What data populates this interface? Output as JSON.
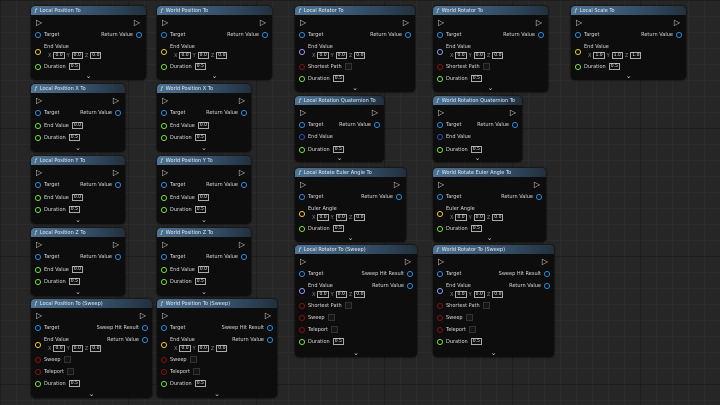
{
  "pin_colors": {
    "object": "#2d8de0",
    "vector": "#f0c82a",
    "rotator": "#8f9ff0",
    "bool": "#8a0f0f",
    "float": "#7ee23a",
    "quat": "#2d50b8"
  },
  "icons": {
    "function": "f-function-icon",
    "exec": "exec-arrow-icon",
    "expand": "chevron-down-icon"
  },
  "nodes": [
    {
      "title": "Local Position To",
      "rows": [
        [
          {
            "label": "Target",
            "pin": "object"
          },
          {
            "label": "Return Value",
            "pin": "object"
          }
        ],
        [
          {
            "label": "End Value",
            "pin": "vector",
            "xyz": [
              "0.0",
              "0.0",
              "0.0"
            ]
          }
        ],
        [
          {
            "label": "Duration",
            "pin": "float",
            "value": "0.5"
          }
        ]
      ]
    },
    {
      "title": "World Position To",
      "rows": [
        [
          {
            "label": "Target",
            "pin": "object"
          },
          {
            "label": "Return Value",
            "pin": "object"
          }
        ],
        [
          {
            "label": "End Value",
            "pin": "vector",
            "xyz": [
              "0.0",
              "0.0",
              "0.0"
            ]
          }
        ],
        [
          {
            "label": "Duration",
            "pin": "float",
            "value": "0.5"
          }
        ]
      ]
    },
    {
      "title": "Local Rotator To",
      "rows": [
        [
          {
            "label": "Target",
            "pin": "object"
          },
          {
            "label": "Return Value",
            "pin": "object"
          }
        ],
        [
          {
            "label": "End Value",
            "pin": "rotator",
            "xyz": [
              "0.0",
              "0.0",
              "0.0"
            ]
          }
        ],
        [
          {
            "label": "Shortest Path",
            "pin": "bool",
            "checked": false
          }
        ],
        [
          {
            "label": "Duration",
            "pin": "float",
            "value": "0.5"
          }
        ]
      ]
    },
    {
      "title": "World Rotator To",
      "rows": [
        [
          {
            "label": "Target",
            "pin": "object"
          },
          {
            "label": "Return Value",
            "pin": "object"
          }
        ],
        [
          {
            "label": "End Value",
            "pin": "rotator",
            "xyz": [
              "0.0",
              "0.0",
              "0.0"
            ]
          }
        ],
        [
          {
            "label": "Shortest Path",
            "pin": "bool",
            "checked": false
          }
        ],
        [
          {
            "label": "Duration",
            "pin": "float",
            "value": "0.5"
          }
        ]
      ]
    },
    {
      "title": "Local Scale To",
      "rows": [
        [
          {
            "label": "Target",
            "pin": "object"
          },
          {
            "label": "Return Value",
            "pin": "object"
          }
        ],
        [
          {
            "label": "End Value",
            "pin": "vector",
            "xyz": [
              "1.0",
              "1.0",
              "1.0"
            ]
          }
        ],
        [
          {
            "label": "Duration",
            "pin": "float",
            "value": "0.5"
          }
        ]
      ]
    },
    {
      "title": "Local Position X To",
      "rows": [
        [
          {
            "label": "Target",
            "pin": "object"
          },
          {
            "label": "Return Value",
            "pin": "object"
          }
        ],
        [
          {
            "label": "End Value",
            "pin": "float",
            "value": "0.0"
          }
        ],
        [
          {
            "label": "Duration",
            "pin": "float",
            "value": "0.5"
          }
        ]
      ]
    },
    {
      "title": "World Position X To",
      "rows": [
        [
          {
            "label": "Target",
            "pin": "object"
          },
          {
            "label": "Return Value",
            "pin": "object"
          }
        ],
        [
          {
            "label": "End Value",
            "pin": "float",
            "value": "0.0"
          }
        ],
        [
          {
            "label": "Duration",
            "pin": "float",
            "value": "0.5"
          }
        ]
      ]
    },
    {
      "title": "Local Rotation Quaternion To",
      "rows": [
        [
          {
            "label": "Target",
            "pin": "object"
          },
          {
            "label": "Return Value",
            "pin": "object"
          }
        ],
        [
          {
            "label": "End Value",
            "pin": "quat"
          }
        ],
        [
          {
            "label": "Duration",
            "pin": "float",
            "value": "0.5"
          }
        ]
      ]
    },
    {
      "title": "World Rotation Quaternion To",
      "rows": [
        [
          {
            "label": "Target",
            "pin": "object"
          },
          {
            "label": "Return Value",
            "pin": "object"
          }
        ],
        [
          {
            "label": "End Value",
            "pin": "quat"
          }
        ],
        [
          {
            "label": "Duration",
            "pin": "float",
            "value": "0.5"
          }
        ]
      ]
    },
    {
      "title": "Local Position Y To",
      "rows": [
        [
          {
            "label": "Target",
            "pin": "object"
          },
          {
            "label": "Return Value",
            "pin": "object"
          }
        ],
        [
          {
            "label": "End Value",
            "pin": "float",
            "value": "0.0"
          }
        ],
        [
          {
            "label": "Duration",
            "pin": "float",
            "value": "0.5"
          }
        ]
      ]
    },
    {
      "title": "World Position Y To",
      "rows": [
        [
          {
            "label": "Target",
            "pin": "object"
          },
          {
            "label": "Return Value",
            "pin": "object"
          }
        ],
        [
          {
            "label": "End Value",
            "pin": "float",
            "value": "0.0"
          }
        ],
        [
          {
            "label": "Duration",
            "pin": "float",
            "value": "0.5"
          }
        ]
      ]
    },
    {
      "title": "Local Rotate Euler Angle To",
      "rows": [
        [
          {
            "label": "Target",
            "pin": "object"
          },
          {
            "label": "Return Value",
            "pin": "object"
          }
        ],
        [
          {
            "label": "Euler Angle",
            "pin": "vector",
            "xyz": [
              "0.0",
              "0.0",
              "0.0"
            ]
          }
        ],
        [
          {
            "label": "Duration",
            "pin": "float",
            "value": "0.5"
          }
        ]
      ]
    },
    {
      "title": "World Rotate Euler Angle To",
      "rows": [
        [
          {
            "label": "Target",
            "pin": "object"
          },
          {
            "label": "Return Value",
            "pin": "object"
          }
        ],
        [
          {
            "label": "Euler Angle",
            "pin": "vector",
            "xyz": [
              "0.0",
              "0.0",
              "0.0"
            ]
          }
        ],
        [
          {
            "label": "Duration",
            "pin": "float",
            "value": "0.5"
          }
        ]
      ]
    },
    {
      "title": "Local Position Z To",
      "rows": [
        [
          {
            "label": "Target",
            "pin": "object"
          },
          {
            "label": "Return Value",
            "pin": "object"
          }
        ],
        [
          {
            "label": "End Value",
            "pin": "float",
            "value": "0.0"
          }
        ],
        [
          {
            "label": "Duration",
            "pin": "float",
            "value": "0.5"
          }
        ]
      ]
    },
    {
      "title": "World Position Z To",
      "rows": [
        [
          {
            "label": "Target",
            "pin": "object"
          },
          {
            "label": "Return Value",
            "pin": "object"
          }
        ],
        [
          {
            "label": "End Value",
            "pin": "float",
            "value": "0.0"
          }
        ],
        [
          {
            "label": "Duration",
            "pin": "float",
            "value": "0.5"
          }
        ]
      ]
    },
    {
      "title": "Local Rotator To (Sweep)",
      "rows": [
        [
          {
            "label": "Target",
            "pin": "object"
          },
          {
            "label": "Sweep Hit Result",
            "pin": "object"
          }
        ],
        [
          {
            "label": "End Value",
            "pin": "rotator",
            "xyz": [
              "0.0",
              "0.0",
              "0.0"
            ]
          },
          {
            "label": "Return Value",
            "pin": "object"
          }
        ],
        [
          {
            "label": "Shortest Path",
            "pin": "bool",
            "checked": false
          }
        ],
        [
          {
            "label": "Sweep",
            "pin": "bool",
            "checked": false
          }
        ],
        [
          {
            "label": "Teleport",
            "pin": "bool",
            "checked": false
          }
        ],
        [
          {
            "label": "Duration",
            "pin": "float",
            "value": "0.5"
          }
        ]
      ]
    },
    {
      "title": "World Rotator To (Sweep)",
      "rows": [
        [
          {
            "label": "Target",
            "pin": "object"
          },
          {
            "label": "Sweep Hit Result",
            "pin": "object"
          }
        ],
        [
          {
            "label": "End Value",
            "pin": "rotator",
            "xyz": [
              "0.0",
              "0.0",
              "0.0"
            ]
          },
          {
            "label": "Return Value",
            "pin": "object"
          }
        ],
        [
          {
            "label": "Shortest Path",
            "pin": "bool",
            "checked": false
          }
        ],
        [
          {
            "label": "Sweep",
            "pin": "bool",
            "checked": false
          }
        ],
        [
          {
            "label": "Teleport",
            "pin": "bool",
            "checked": false
          }
        ],
        [
          {
            "label": "Duration",
            "pin": "float",
            "value": "0.5"
          }
        ]
      ]
    },
    {
      "title": "Local Position To (Sweep)",
      "rows": [
        [
          {
            "label": "Target",
            "pin": "object"
          },
          {
            "label": "Sweep Hit Result",
            "pin": "object"
          }
        ],
        [
          {
            "label": "End Value",
            "pin": "vector",
            "xyz": [
              "0.0",
              "0.0",
              "0.0"
            ]
          },
          {
            "label": "Return Value",
            "pin": "object"
          }
        ],
        [
          {
            "label": "Sweep",
            "pin": "bool",
            "checked": false
          }
        ],
        [
          {
            "label": "Teleport",
            "pin": "bool",
            "checked": false
          }
        ],
        [
          {
            "label": "Duration",
            "pin": "float",
            "value": "0.5"
          }
        ]
      ]
    },
    {
      "title": "World Position To (Sweep)",
      "rows": [
        [
          {
            "label": "Target",
            "pin": "object"
          },
          {
            "label": "Sweep Hit Result",
            "pin": "object"
          }
        ],
        [
          {
            "label": "End Value",
            "pin": "vector",
            "xyz": [
              "0.0",
              "0.0",
              "0.0"
            ]
          },
          {
            "label": "Return Value",
            "pin": "object"
          }
        ],
        [
          {
            "label": "Sweep",
            "pin": "bool",
            "checked": false
          }
        ],
        [
          {
            "label": "Teleport",
            "pin": "bool",
            "checked": false
          }
        ],
        [
          {
            "label": "Duration",
            "pin": "float",
            "value": "0.5"
          }
        ]
      ]
    }
  ]
}
